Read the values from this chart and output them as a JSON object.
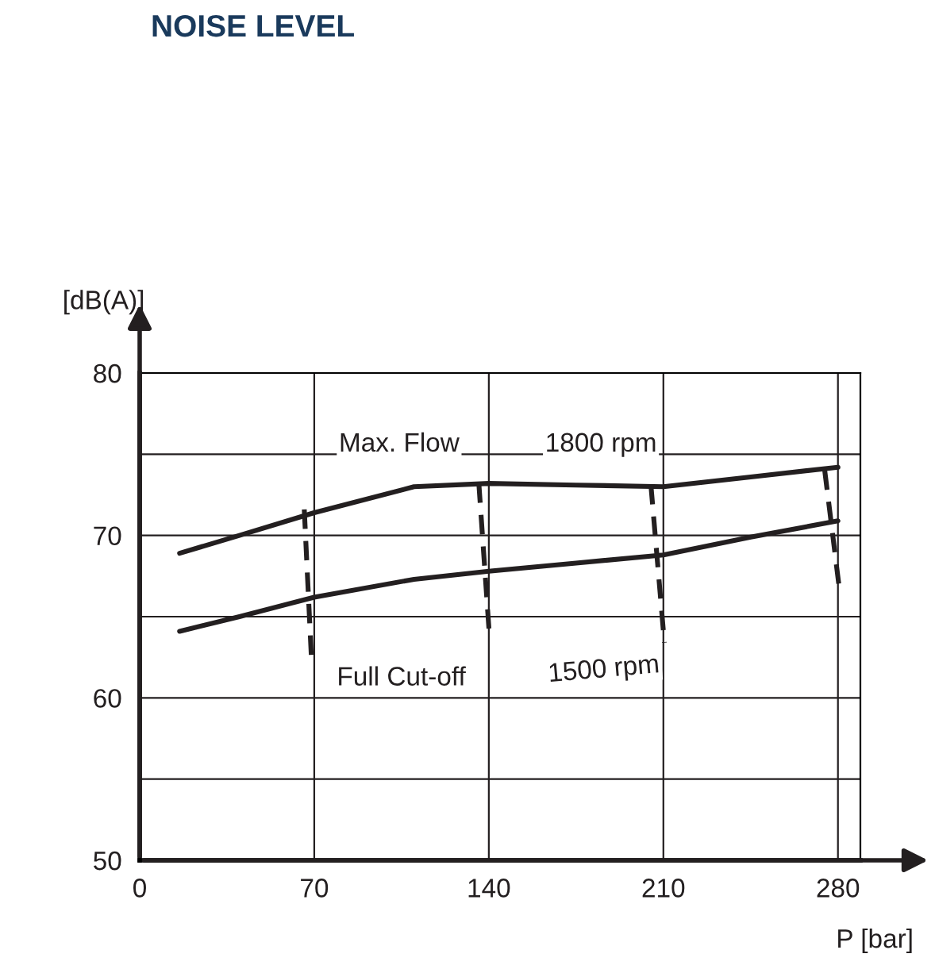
{
  "chart_data": {
    "type": "line",
    "title": "NOISE LEVEL",
    "xlabel": "P [bar]",
    "ylabel": "[dB(A)]",
    "xlim": [
      0,
      289
    ],
    "ylim": [
      50,
      80
    ],
    "xticks": [
      0,
      70,
      140,
      210,
      280
    ],
    "yticks": [
      50,
      {
        "value": 55,
        "label": null
      },
      60,
      {
        "value": 65,
        "label": null
      },
      70,
      {
        "value": 75,
        "label": null
      },
      80
    ],
    "grid": true,
    "legend": false,
    "marker": "none",
    "series": [
      {
        "color": "#231f20",
        "line_style": "solid",
        "x": [
          16,
          40,
          70,
          110,
          140,
          175,
          210,
          245,
          280
        ],
        "values": [
          68.9,
          70.0,
          71.4,
          73.0,
          73.2,
          73.1,
          73.0,
          73.6,
          74.2
        ]
      },
      {
        "color": "#231f20",
        "line_style": "solid",
        "x": [
          16,
          40,
          70,
          110,
          140,
          175,
          210,
          245,
          280
        ],
        "values": [
          64.1,
          65.0,
          66.2,
          67.3,
          67.8,
          68.3,
          68.8,
          69.9,
          70.9
        ]
      },
      {
        "color": "#231f20",
        "line_style": "dashed",
        "x": [
          66,
          69
        ],
        "values": [
          71.6,
          62.0
        ]
      },
      {
        "color": "#231f20",
        "line_style": "dashed",
        "x": [
          136,
          140.3
        ],
        "values": [
          73.2,
          63.7
        ]
      },
      {
        "color": "#231f20",
        "line_style": "dashed",
        "x": [
          205,
          210.4
        ],
        "values": [
          73.1,
          63.4
        ]
      },
      {
        "color": "#231f20",
        "line_style": "dashed",
        "x": [
          274.7,
          280.5
        ],
        "values": [
          74.0,
          66.8
        ]
      }
    ],
    "annotations": [
      "Max. Flow",
      "1800 rpm",
      "Full Cut-off",
      "1500 rpm"
    ]
  }
}
